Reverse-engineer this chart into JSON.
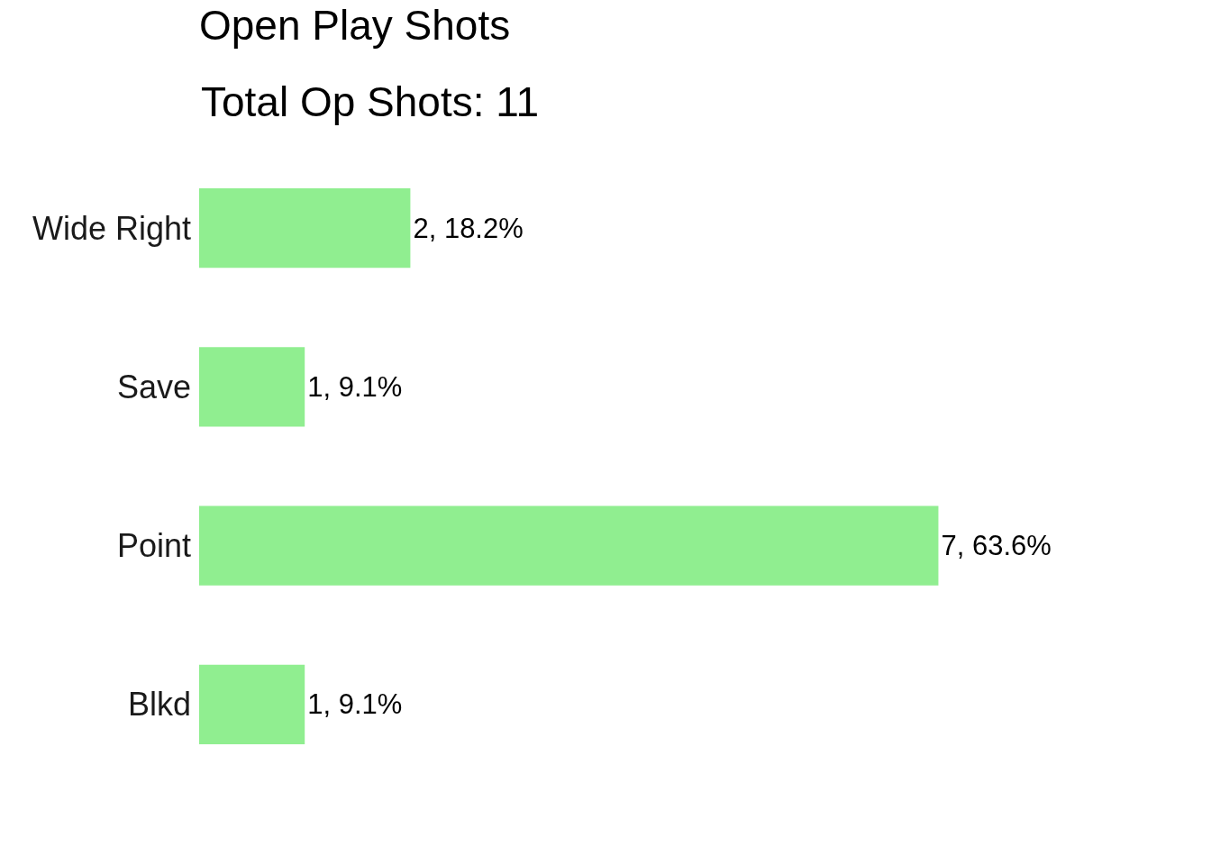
{
  "chart_data": {
    "type": "bar",
    "orientation": "horizontal",
    "title": "Open Play Shots",
    "subtitle": "Total Op Shots: 11",
    "categories": [
      "Wide Right",
      "Save",
      "Point",
      "Blkd"
    ],
    "values": [
      2,
      1,
      7,
      1
    ],
    "value_labels": [
      "2, 18.2%",
      "1, 9.1%",
      "7, 63.6%",
      "1, 9.1%"
    ],
    "color": "#90ee90",
    "tick_labels": "y",
    "legend": false
  }
}
